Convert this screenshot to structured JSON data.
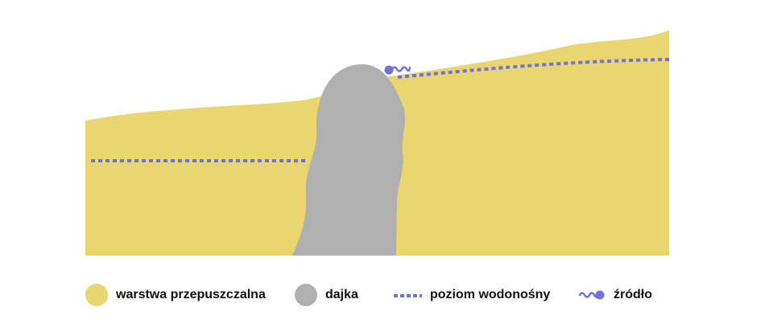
{
  "colors": {
    "permeable": "#E9D66E",
    "dike": "#B0B0B0",
    "water": "#7070E0"
  },
  "legend": [
    {
      "label": "warstwa przepuszczalna",
      "icon": "yellow-circle"
    },
    {
      "label": "dajka",
      "icon": "gray-circle"
    },
    {
      "label": "poziom wodonośny",
      "icon": "dotted-line"
    },
    {
      "label": "źródło",
      "icon": "spring-wave"
    }
  ]
}
